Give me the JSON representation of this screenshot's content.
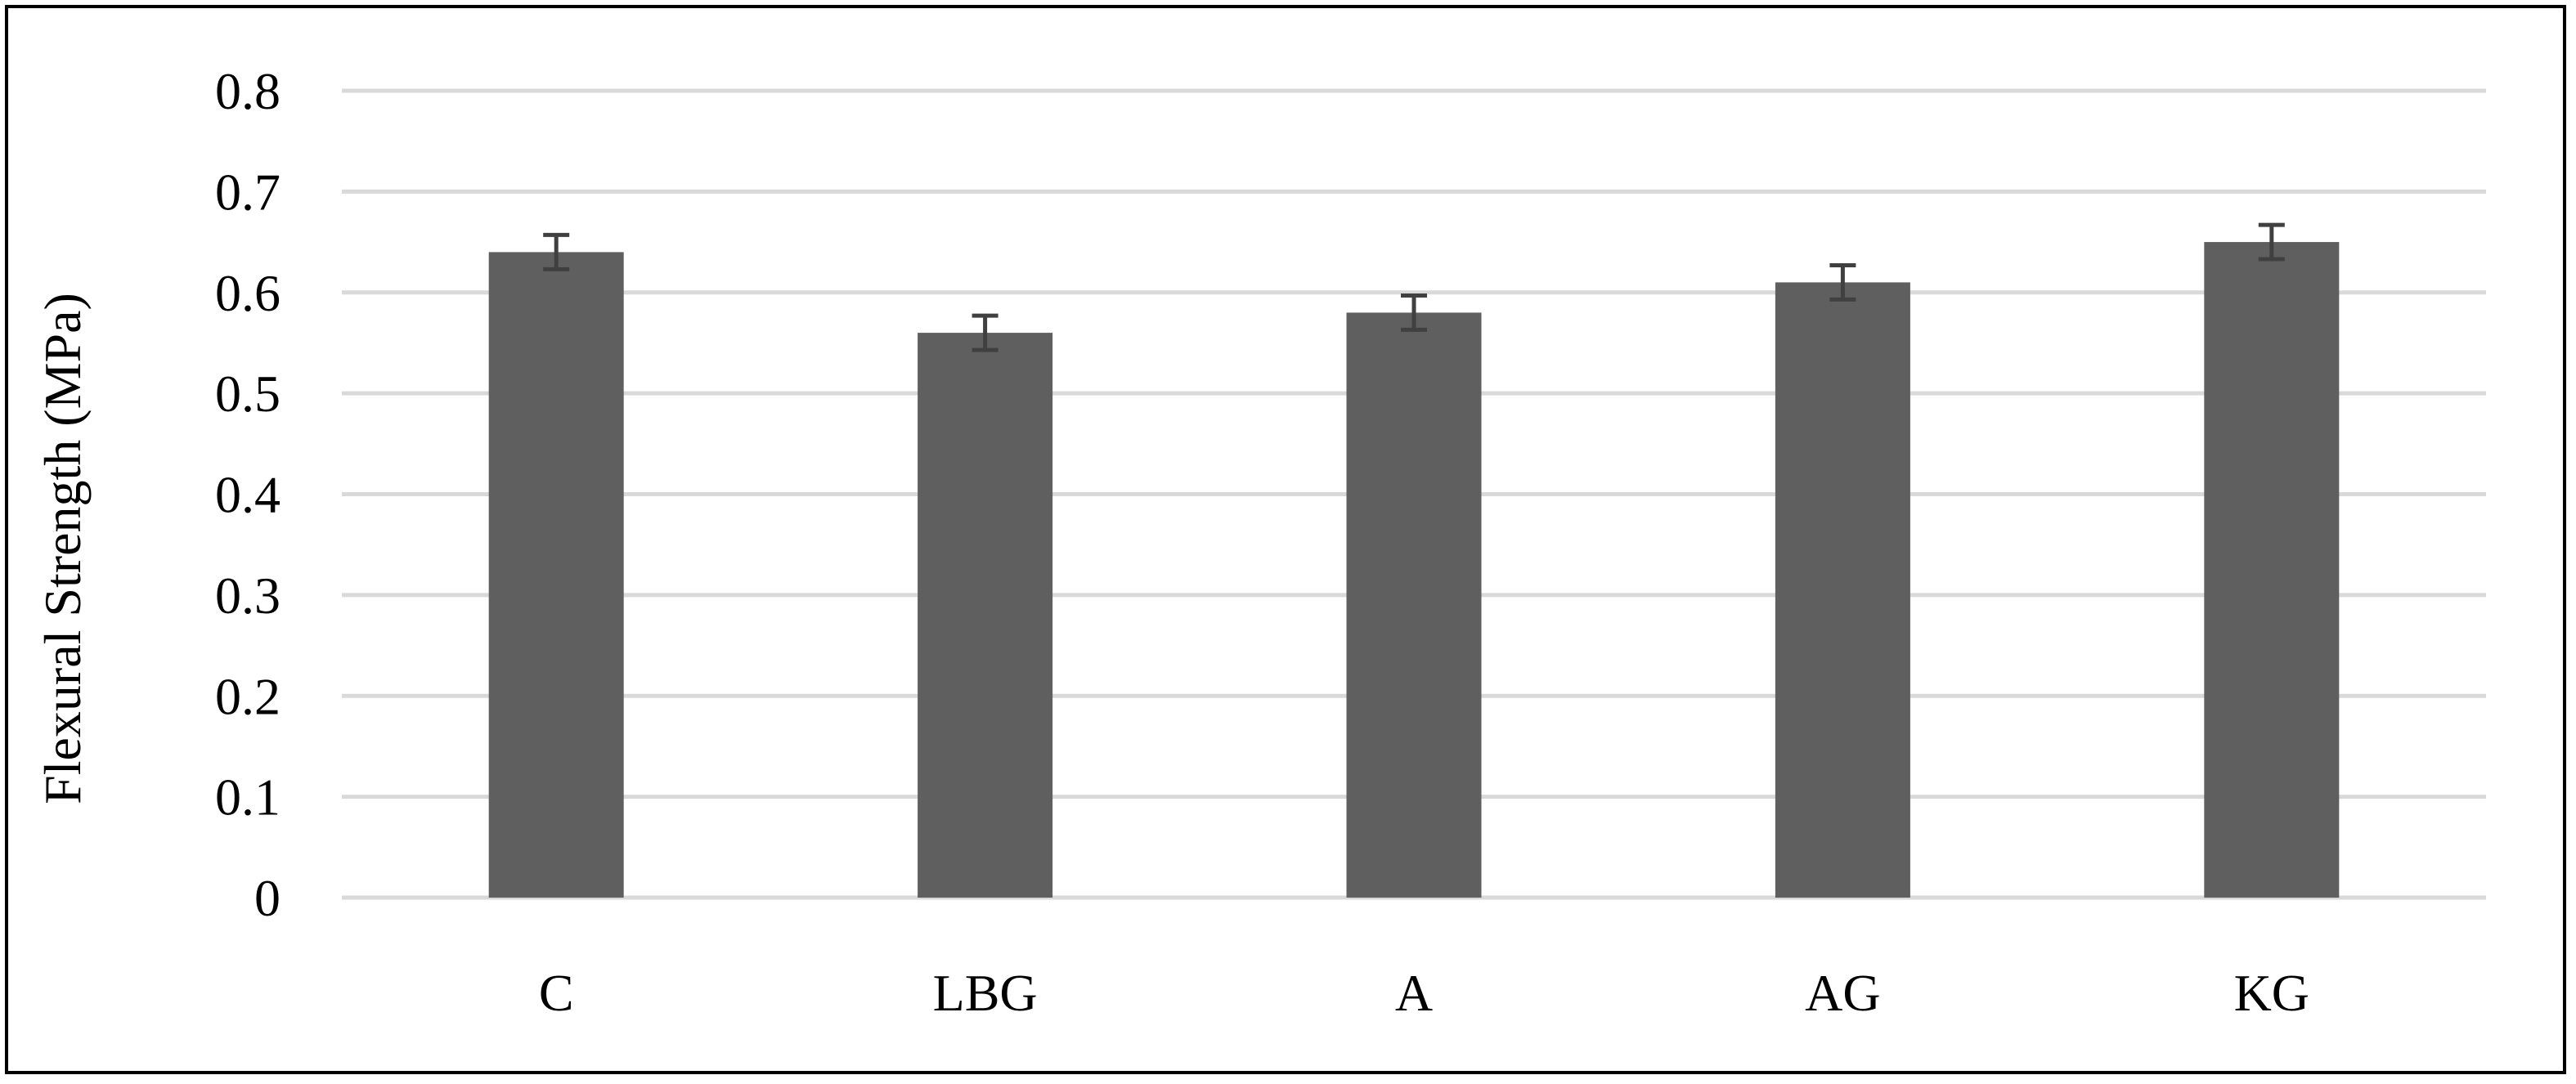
{
  "chart_data": {
    "type": "bar",
    "title": "",
    "xlabel": "",
    "ylabel": "Flexural Strength (MPa)",
    "categories": [
      "C",
      "LBG",
      "A",
      "AG",
      "KG"
    ],
    "values": [
      0.64,
      0.56,
      0.58,
      0.61,
      0.65
    ],
    "error": [
      0.017,
      0.017,
      0.017,
      0.017,
      0.017
    ],
    "ylim": [
      0,
      0.8
    ],
    "yticks": [
      "0",
      "0.1",
      "0.2",
      "0.3",
      "0.4",
      "0.5",
      "0.6",
      "0.7",
      "0.8"
    ],
    "grid": true,
    "legend": "none",
    "colors": {
      "bar": "#5f5f5f",
      "error_bar": "#404040",
      "grid": "#d9d9d9",
      "frame": "#000000"
    }
  }
}
